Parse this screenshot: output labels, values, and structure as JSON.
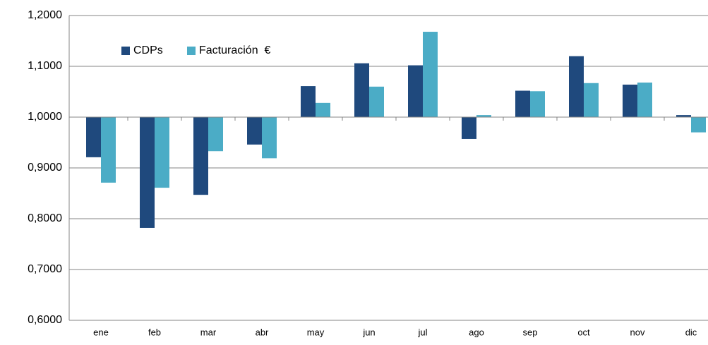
{
  "chart_data": {
    "type": "bar",
    "categories": [
      "ene",
      "feb",
      "mar",
      "abr",
      "may",
      "jun",
      "jul",
      "ago",
      "sep",
      "oct",
      "nov",
      "dic"
    ],
    "series": [
      {
        "name": "CDPs",
        "color": "#1f497d",
        "values": [
          0.921,
          0.782,
          0.847,
          0.946,
          1.061,
          1.106,
          1.102,
          0.957,
          1.052,
          1.12,
          1.064,
          1.004
        ]
      },
      {
        "name": "Facturación  €",
        "color": "#4bacc6",
        "values": [
          0.871,
          0.861,
          0.933,
          0.919,
          1.028,
          1.06,
          1.168,
          1.004,
          1.051,
          1.067,
          1.068,
          0.97
        ]
      }
    ],
    "ylim": [
      0.6,
      1.2
    ],
    "yticks": [
      {
        "value": 0.6,
        "label": "0,6000"
      },
      {
        "value": 0.7,
        "label": "0,7000"
      },
      {
        "value": 0.8,
        "label": "0,8000"
      },
      {
        "value": 0.9,
        "label": "0,9000"
      },
      {
        "value": 1.0,
        "label": "1,0000"
      },
      {
        "value": 1.1,
        "label": "1,1000"
      },
      {
        "value": 1.2,
        "label": "1,2000"
      }
    ],
    "grid": true,
    "legend": "top-left"
  }
}
